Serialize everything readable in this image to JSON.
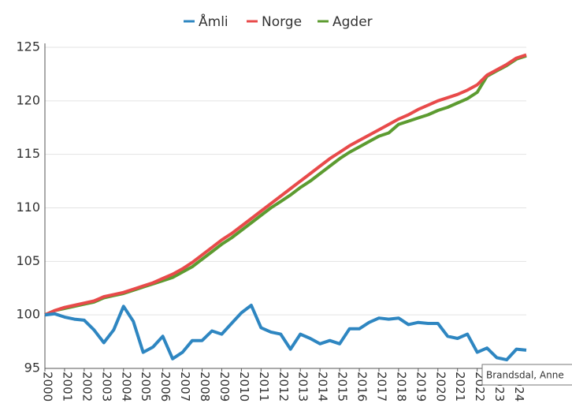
{
  "chart_data": {
    "type": "line",
    "x": [
      2000,
      2000.5,
      2001,
      2001.5,
      2002,
      2002.5,
      2003,
      2003.5,
      2004,
      2004.5,
      2005,
      2005.5,
      2006,
      2006.5,
      2007,
      2007.5,
      2008,
      2008.5,
      2009,
      2009.5,
      2010,
      2010.5,
      2011,
      2011.5,
      2012,
      2012.5,
      2013,
      2013.5,
      2014,
      2014.5,
      2015,
      2015.5,
      2016,
      2016.5,
      2017,
      2017.5,
      2018,
      2018.5,
      2019,
      2019.5,
      2020,
      2020.5,
      2021,
      2021.5,
      2022,
      2022.5,
      2023,
      2023.5,
      2024,
      2024.5
    ],
    "series": [
      {
        "name": "Åmli",
        "color": "#2e86c1",
        "values": [
          100.0,
          100.1,
          99.8,
          99.6,
          99.5,
          98.6,
          97.4,
          98.6,
          100.8,
          99.4,
          96.5,
          97.0,
          98.0,
          95.9,
          96.5,
          97.6,
          97.6,
          98.5,
          98.2,
          99.2,
          100.2,
          100.9,
          98.8,
          98.4,
          98.2,
          96.8,
          98.2,
          97.8,
          97.3,
          97.6,
          97.3,
          98.7,
          98.7,
          99.3,
          99.7,
          99.6,
          99.7,
          99.1,
          99.3,
          99.2,
          99.2,
          98.0,
          97.8,
          98.2,
          96.5,
          96.9,
          96.0,
          95.8,
          96.8,
          96.7
        ]
      },
      {
        "name": "Norge",
        "color": "#e84a4a",
        "values": [
          100,
          100.4,
          100.7,
          100.9,
          101.1,
          101.3,
          101.7,
          101.9,
          102.1,
          102.4,
          102.7,
          103.0,
          103.4,
          103.8,
          104.3,
          104.9,
          105.6,
          106.3,
          107.0,
          107.6,
          108.3,
          109.0,
          109.7,
          110.4,
          111.1,
          111.8,
          112.5,
          113.2,
          113.9,
          114.6,
          115.2,
          115.8,
          116.3,
          116.8,
          117.3,
          117.8,
          118.3,
          118.7,
          119.2,
          119.6,
          120.0,
          120.3,
          120.6,
          121.0,
          121.5,
          122.4,
          122.9,
          123.4,
          124.0,
          124.3
        ]
      },
      {
        "name": "Agder",
        "color": "#5c9b30",
        "values": [
          100,
          100.4,
          100.6,
          100.8,
          101.0,
          101.2,
          101.6,
          101.8,
          102.0,
          102.3,
          102.6,
          102.9,
          103.2,
          103.5,
          104.0,
          104.5,
          105.2,
          105.9,
          106.6,
          107.2,
          107.9,
          108.6,
          109.3,
          110.0,
          110.6,
          111.2,
          111.9,
          112.5,
          113.2,
          113.9,
          114.6,
          115.2,
          115.7,
          116.2,
          116.7,
          117.0,
          117.8,
          118.1,
          118.4,
          118.7,
          119.1,
          119.4,
          119.8,
          120.2,
          120.8,
          122.3,
          122.8,
          123.3,
          123.9,
          124.2
        ]
      }
    ],
    "xlim": [
      2000,
      2024.5
    ],
    "xticks": [
      2000,
      2001,
      2002,
      2003,
      2004,
      2005,
      2006,
      2007,
      2008,
      2009,
      2010,
      2011,
      2012,
      2013,
      2014,
      2015,
      2016,
      2017,
      2018,
      2019,
      2020,
      2021,
      2022,
      2023,
      2024
    ],
    "ylim": [
      95,
      125
    ],
    "yticks": [
      95,
      100,
      105,
      110,
      115,
      120,
      125
    ],
    "grid": true,
    "legend": "top",
    "annotation": "Brandsdal, Anne"
  }
}
